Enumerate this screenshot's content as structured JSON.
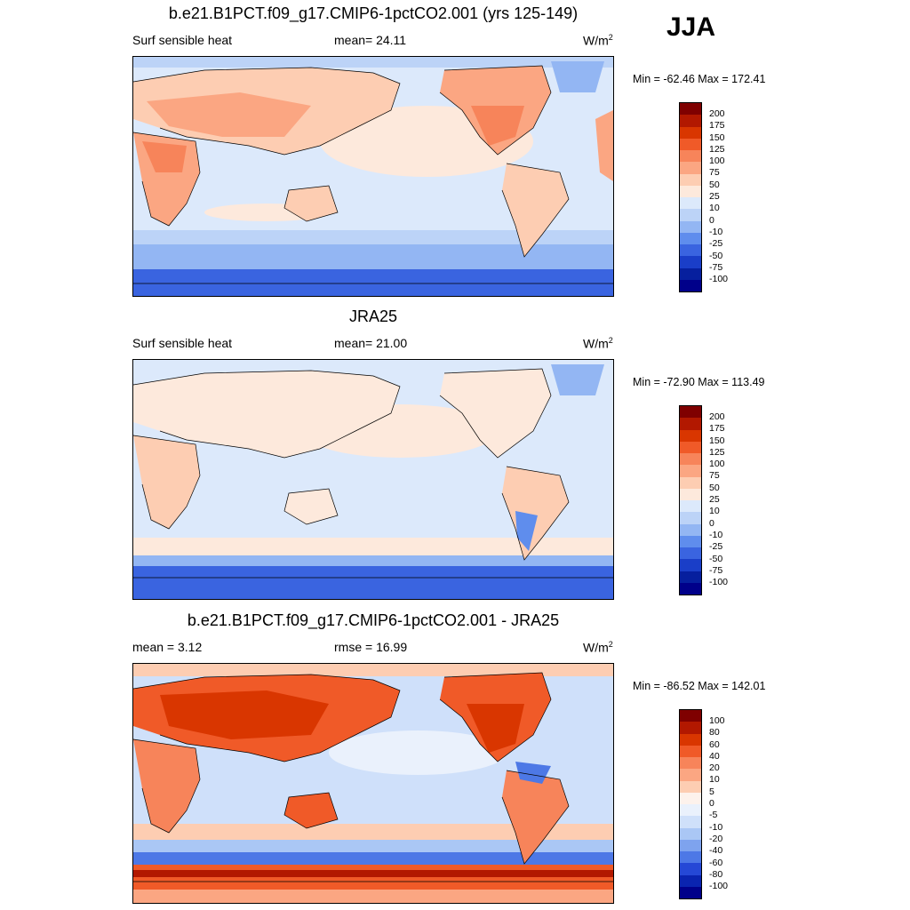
{
  "season": "JJA",
  "panels": [
    {
      "title": "b.e21.B1PCT.f09_g17.CMIP6-1pctCO2.001 (yrs 125-149)",
      "left_label": "Surf sensible heat",
      "center_label": "mean=  24.11",
      "units": "W/m",
      "units_sup": "2",
      "minmax": "Min = -62.46 Max = 172.41",
      "levels": [
        "200",
        "175",
        "150",
        "125",
        "100",
        "75",
        "50",
        "25",
        "10",
        "0",
        "-10",
        "-25",
        "-50",
        "-75",
        "-100"
      ],
      "colors": [
        "#7f0000",
        "#b21800",
        "#d93600",
        "#f05a28",
        "#f7845a",
        "#fba682",
        "#fdcdb2",
        "#fde9dc",
        "#dce9fb",
        "#bcd3f7",
        "#93b6f3",
        "#5f8ded",
        "#3a64e0",
        "#1a3ec8",
        "#061f9e",
        "#00008a"
      ]
    },
    {
      "title": "JRA25",
      "left_label": "Surf sensible heat",
      "center_label": "mean=  21.00",
      "units": "W/m",
      "units_sup": "2",
      "minmax": "Min = -72.90 Max = 113.49",
      "levels": [
        "200",
        "175",
        "150",
        "125",
        "100",
        "75",
        "50",
        "25",
        "10",
        "0",
        "-10",
        "-25",
        "-50",
        "-75",
        "-100"
      ],
      "colors": [
        "#7f0000",
        "#b21800",
        "#d93600",
        "#f05a28",
        "#f7845a",
        "#fba682",
        "#fdcdb2",
        "#fde9dc",
        "#dce9fb",
        "#bcd3f7",
        "#93b6f3",
        "#5f8ded",
        "#3a64e0",
        "#1a3ec8",
        "#061f9e",
        "#00008a"
      ]
    },
    {
      "title": "b.e21.B1PCT.f09_g17.CMIP6-1pctCO2.001 - JRA25",
      "left_label": "mean =   3.12",
      "center_label": "rmse =  16.99",
      "units": "W/m",
      "units_sup": "2",
      "minmax": "Min = -86.52 Max = 142.01",
      "levels": [
        "100",
        "80",
        "60",
        "40",
        "20",
        "10",
        "5",
        "0",
        "-5",
        "-10",
        "-20",
        "-40",
        "-60",
        "-80",
        "-100"
      ],
      "colors": [
        "#7f0000",
        "#b21800",
        "#d93600",
        "#f05a28",
        "#f7845a",
        "#fba682",
        "#fdcdb2",
        "#fdf2ec",
        "#eaf1fc",
        "#cfe0fa",
        "#aac7f5",
        "#7ea3ee",
        "#4d78e6",
        "#2548d6",
        "#0a24b0",
        "#00008a"
      ]
    }
  ]
}
